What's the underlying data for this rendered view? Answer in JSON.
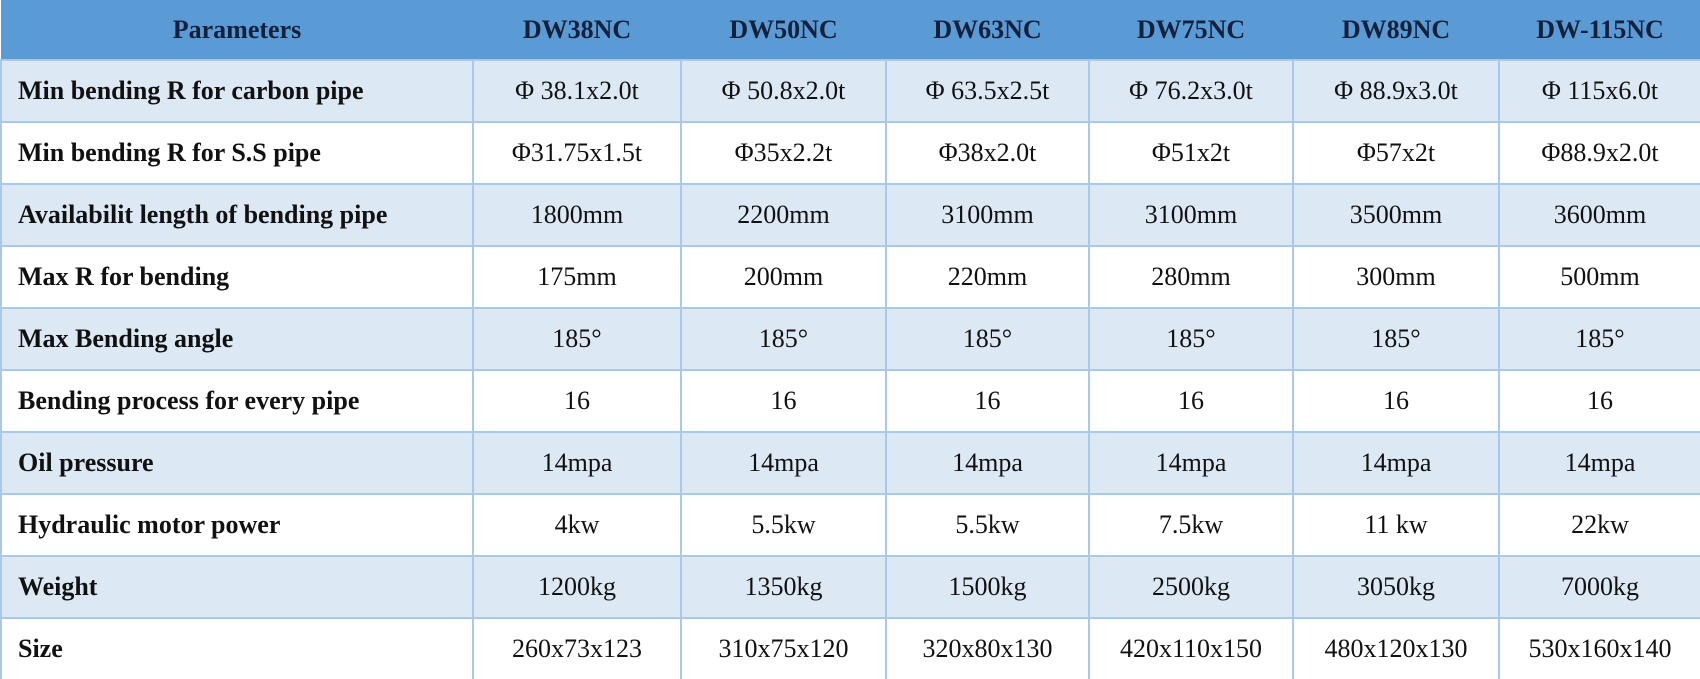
{
  "table": {
    "header": [
      "Parameters",
      "DW38NC",
      "DW50NC",
      "DW63NC",
      "DW75NC",
      "DW89NC",
      "DW-115NC"
    ],
    "rows": [
      [
        "Min bending R for carbon pipe",
        "Φ 38.1x2.0t",
        "Φ 50.8x2.0t",
        "Φ 63.5x2.5t",
        "Φ 76.2x3.0t",
        "Φ 88.9x3.0t",
        "Φ 115x6.0t"
      ],
      [
        "Min bending R for S.S pipe",
        "Φ31.75x1.5t",
        "Φ35x2.2t",
        "Φ38x2.0t",
        "Φ51x2t",
        "Φ57x2t",
        "Φ88.9x2.0t"
      ],
      [
        "Availabilit length of bending pipe",
        "1800mm",
        "2200mm",
        "3100mm",
        "3100mm",
        "3500mm",
        "3600mm"
      ],
      [
        "Max R for bending",
        "175mm",
        "200mm",
        "220mm",
        "280mm",
        "300mm",
        "500mm"
      ],
      [
        "Max Bending angle",
        "185°",
        "185°",
        "185°",
        "185°",
        "185°",
        "185°"
      ],
      [
        "Bending process for every pipe",
        "16",
        "16",
        "16",
        "16",
        "16",
        "16"
      ],
      [
        "Oil pressure",
        "14mpa",
        "14mpa",
        "14mpa",
        "14mpa",
        "14mpa",
        "14mpa"
      ],
      [
        "Hydraulic motor power",
        "4kw",
        "5.5kw",
        "5.5kw",
        "7.5kw",
        "11 kw",
        "22kw"
      ],
      [
        "Weight",
        "1200kg",
        "1350kg",
        "1500kg",
        "2500kg",
        "3050kg",
        "7000kg"
      ],
      [
        "Size",
        "260x73x123",
        "310x75x120",
        "320x80x130",
        "420x110x150",
        "480x120x130",
        "530x160x140"
      ]
    ]
  }
}
